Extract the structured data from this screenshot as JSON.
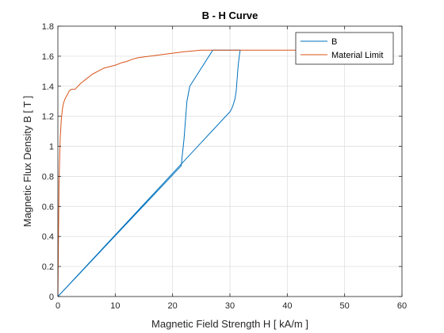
{
  "chart_data": {
    "type": "line",
    "title": "B - H Curve",
    "xlabel": "Magnetic Field Strength H [ kA/m ]",
    "ylabel": "Magnetic Flux Density B [ T ]",
    "xlim": [
      0,
      60
    ],
    "ylim": [
      0,
      1.8
    ],
    "xticks": [
      0,
      10,
      20,
      30,
      40,
      50,
      60
    ],
    "yticks": [
      0,
      0.2,
      0.4,
      0.6,
      0.8,
      1,
      1.2,
      1.4,
      1.6,
      1.8
    ],
    "xtick_labels": [
      "0",
      "10",
      "20",
      "30",
      "40",
      "50",
      "60"
    ],
    "ytick_labels": [
      "0",
      "0.2",
      "0.4",
      "0.6",
      "0.8",
      "1",
      "1.2",
      "1.4",
      "1.6",
      "1.8"
    ],
    "grid": true,
    "legend_position": "top-right",
    "series": [
      {
        "name": "B",
        "color": "#0072BD",
        "x": [
          0,
          30.0,
          30.3,
          30.6,
          30.9,
          31.1,
          31.2,
          31.3,
          31.4,
          31.5,
          31.6,
          31.7,
          31.8,
          27.0,
          23.0,
          22.5,
          22.0,
          21.5,
          0
        ],
        "y": [
          0,
          1.23,
          1.25,
          1.28,
          1.32,
          1.37,
          1.42,
          1.47,
          1.52,
          1.56,
          1.59,
          1.62,
          1.64,
          1.64,
          1.4,
          1.3,
          1.05,
          0.87,
          0
        ]
      },
      {
        "name": "Material Limit",
        "color": "#D95319",
        "x": [
          0,
          0.2,
          0.4,
          0.6,
          0.8,
          1.0,
          1.3,
          1.6,
          2.0,
          2.4,
          3.0,
          4.0,
          5.0,
          6.0,
          7.0,
          8.0,
          9.0,
          10.0,
          11.0,
          12.0,
          13.0,
          14.0,
          16.0,
          18.0,
          20.0,
          22.0,
          25.0,
          30.0,
          40.0,
          50.0,
          58.0
        ],
        "y": [
          0,
          0.75,
          1.05,
          1.18,
          1.25,
          1.29,
          1.32,
          1.34,
          1.37,
          1.38,
          1.38,
          1.42,
          1.45,
          1.48,
          1.5,
          1.52,
          1.53,
          1.54,
          1.555,
          1.565,
          1.58,
          1.59,
          1.6,
          1.61,
          1.62,
          1.63,
          1.64,
          1.64,
          1.64,
          1.64,
          1.64
        ]
      }
    ]
  }
}
